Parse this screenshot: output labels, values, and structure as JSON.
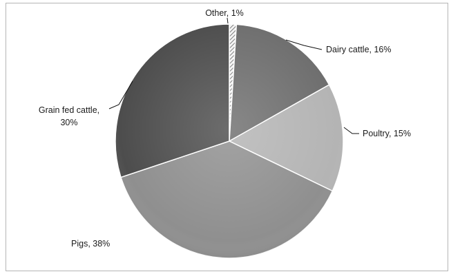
{
  "chart_data": {
    "type": "pie",
    "title": "",
    "categories": [
      "Other",
      "Dairy cattle",
      "Poultry",
      "Pigs",
      "Grain fed cattle"
    ],
    "values": [
      1,
      16,
      15,
      38,
      30
    ],
    "label_lines": [
      [
        "Other, 1%"
      ],
      [
        "Dairy cattle, 16%"
      ],
      [
        "Poultry, 15%"
      ],
      [
        "Pigs, 38%"
      ],
      [
        "Grain fed cattle,",
        "30%"
      ]
    ],
    "colors": [
      "#dadada",
      "#6e6e6e",
      "#b4b4b4",
      "#8f8f8f",
      "#4d4d4d"
    ],
    "other_pattern": "diagonal-hatch",
    "legend": "none",
    "label_position": "outside with leader lines"
  }
}
